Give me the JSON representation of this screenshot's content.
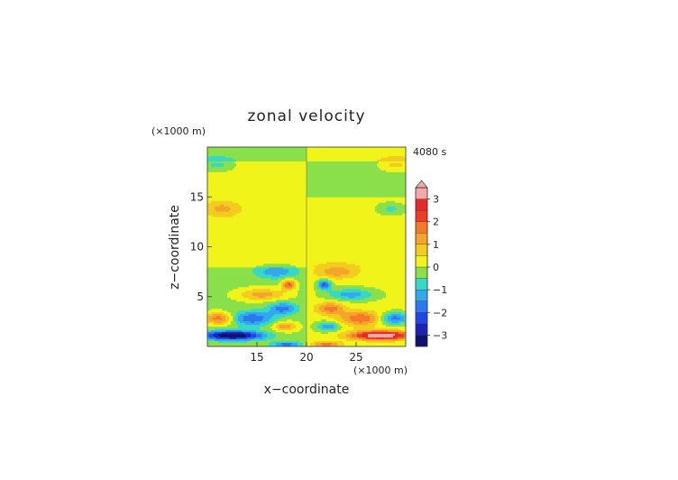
{
  "chart_data": {
    "type": "heatmap",
    "title": "zonal velocity",
    "xlabel": "x−coordinate",
    "ylabel": "z−coordinate",
    "x_unit": "(×1000 m)",
    "z_unit": "(×1000 m)",
    "time_label": "4080 s",
    "xlim": [
      10,
      30
    ],
    "ylim": [
      0,
      20
    ],
    "x_ticks": [
      15,
      20,
      25
    ],
    "y_ticks": [
      5,
      10,
      15
    ],
    "colorbar": {
      "ticks": [
        "3",
        "2",
        "1",
        "0",
        "−1",
        "−2",
        "−3"
      ],
      "tick_values": [
        3,
        2,
        1,
        0,
        -1,
        -2,
        -3
      ],
      "range": [
        -3.5,
        3.5
      ],
      "extend": "max",
      "levels": [
        {
          "from": -3.5,
          "to": -3.0,
          "color": "#10106e"
        },
        {
          "from": -3.0,
          "to": -2.5,
          "color": "#1c22b4"
        },
        {
          "from": -2.5,
          "to": -2.0,
          "color": "#2046e6"
        },
        {
          "from": -2.0,
          "to": -1.5,
          "color": "#2c78f0"
        },
        {
          "from": -1.5,
          "to": -1.0,
          "color": "#34a8ec"
        },
        {
          "from": -1.0,
          "to": -0.5,
          "color": "#36d8c8"
        },
        {
          "from": -0.5,
          "to": 0.0,
          "color": "#8ae04a"
        },
        {
          "from": 0.0,
          "to": 0.5,
          "color": "#f0f418"
        },
        {
          "from": 0.5,
          "to": 1.0,
          "color": "#f4cc20"
        },
        {
          "from": 1.0,
          "to": 1.5,
          "color": "#f4a428"
        },
        {
          "from": 1.5,
          "to": 2.0,
          "color": "#f47a2a"
        },
        {
          "from": 2.0,
          "to": 2.5,
          "color": "#f03c24"
        },
        {
          "from": 2.5,
          "to": 3.0,
          "color": "#e4282c"
        },
        {
          "from": 3.0,
          "to": 3.5,
          "color": "#f4a8a8"
        }
      ]
    },
    "field_features": [
      {
        "x": 11.0,
        "z": 18.2,
        "u": -0.9
      },
      {
        "x": 29.0,
        "z": 18.2,
        "u": 0.9
      },
      {
        "x": 11.5,
        "z": 13.8,
        "u": 0.9
      },
      {
        "x": 28.5,
        "z": 13.8,
        "u": -0.9
      },
      {
        "x": 17.0,
        "z": 7.5,
        "u": -1.2
      },
      {
        "x": 23.0,
        "z": 7.5,
        "u": 1.2
      },
      {
        "x": 15.5,
        "z": 5.2,
        "u": 1.4
      },
      {
        "x": 24.5,
        "z": 5.2,
        "u": -1.4
      },
      {
        "x": 18.2,
        "z": 6.2,
        "u": 2.2
      },
      {
        "x": 21.8,
        "z": 6.2,
        "u": -2.2
      },
      {
        "x": 17.6,
        "z": 3.8,
        "u": -1.6
      },
      {
        "x": 22.4,
        "z": 3.8,
        "u": 1.6
      },
      {
        "x": 14.5,
        "z": 2.8,
        "u": -1.8
      },
      {
        "x": 25.5,
        "z": 2.8,
        "u": 1.8
      },
      {
        "x": 17.8,
        "z": 2.0,
        "u": 1.5
      },
      {
        "x": 22.2,
        "z": 2.0,
        "u": -1.5
      },
      {
        "x": 11.2,
        "z": 2.8,
        "u": 2.0
      },
      {
        "x": 28.8,
        "z": 2.8,
        "u": -2.0
      },
      {
        "x": 12.5,
        "z": 1.1,
        "u": -3.5
      },
      {
        "x": 27.5,
        "z": 1.1,
        "u": 3.5
      },
      {
        "x": 18.0,
        "z": 0.2,
        "u": -1.6
      },
      {
        "x": 22.0,
        "z": 0.2,
        "u": 1.6
      }
    ]
  }
}
